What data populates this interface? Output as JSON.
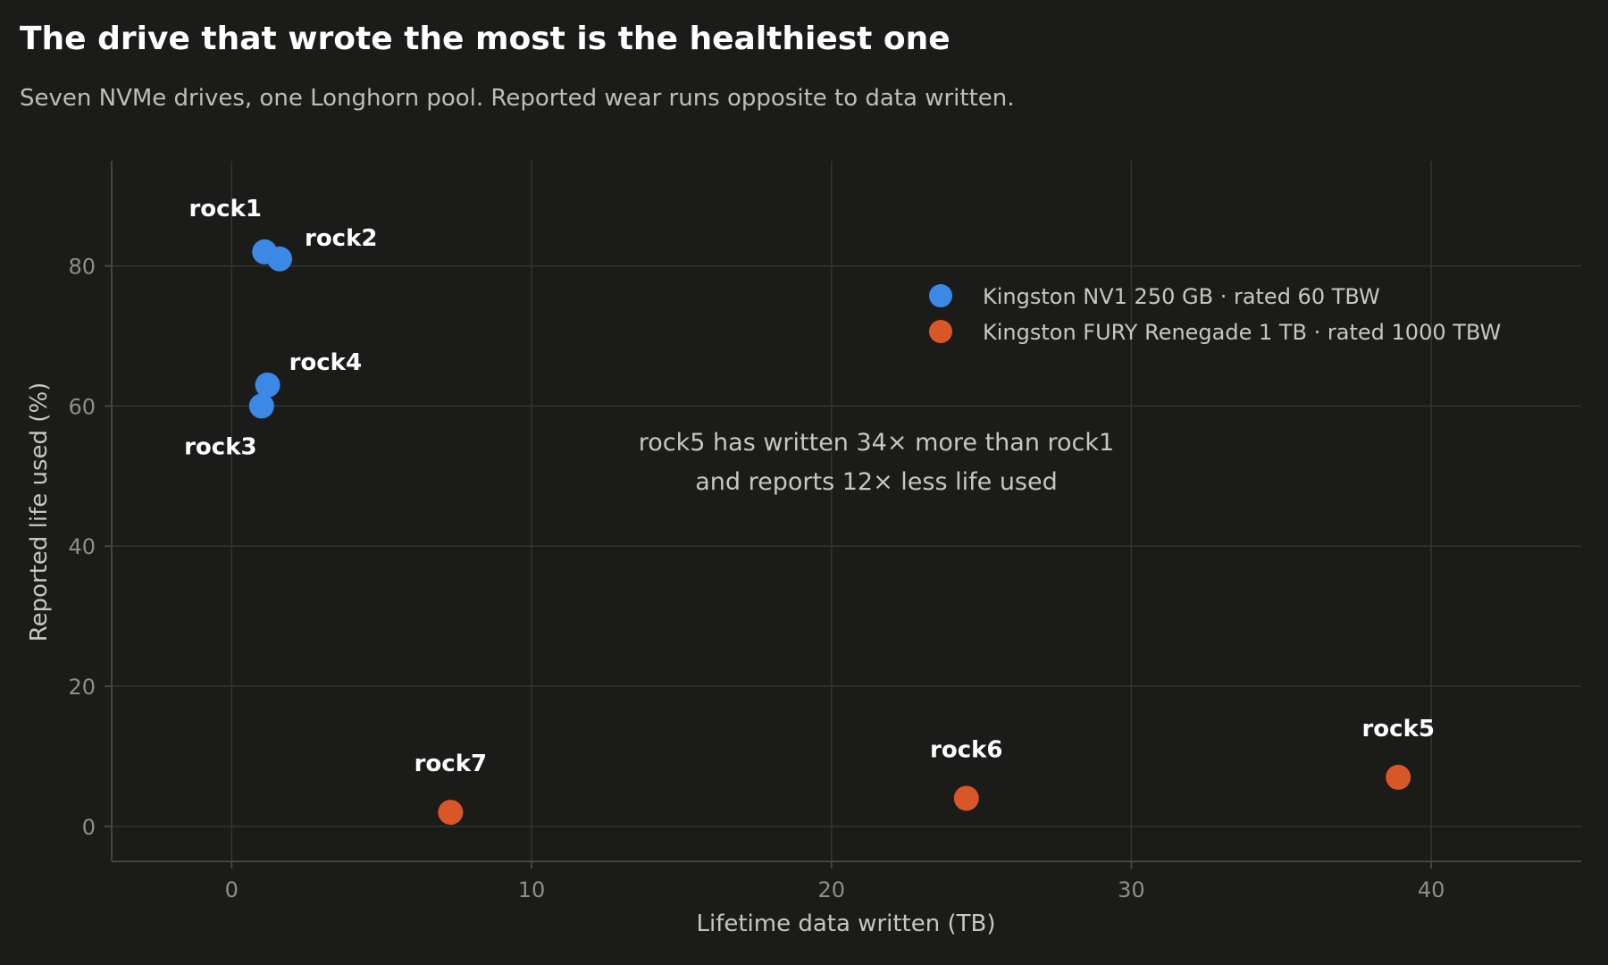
{
  "title": "The drive that wrote the most is the healthiest one",
  "subtitle": "Seven NVMe drives, one Longhorn pool. Reported wear runs opposite to data written.",
  "annotation": [
    "rock5 has written 34× more than rock1",
    "and reports 12× less life used"
  ],
  "colors": {
    "nv1": "#3b88e6",
    "fury": "#d95627",
    "background": "#1b1b1a"
  },
  "chart_data": {
    "type": "scatter",
    "title": "The drive that wrote the most is the healthiest one",
    "subtitle": "Seven NVMe drives, one Longhorn pool. Reported wear runs opposite to data written.",
    "xlabel": "Lifetime data written (TB)",
    "ylabel": "Reported life used (%)",
    "xlim": [
      -4,
      45
    ],
    "ylim": [
      -5,
      95
    ],
    "xticks": [
      0,
      10,
      20,
      30,
      40
    ],
    "yticks": [
      0,
      20,
      40,
      60,
      80
    ],
    "grid": true,
    "legend_position": "top-right",
    "series": [
      {
        "name": "Kingston NV1 250 GB  ·  rated 60 TBW",
        "color": "#3b88e6",
        "points": [
          {
            "label": "rock1",
            "x": 1.1,
            "y": 82
          },
          {
            "label": "rock2",
            "x": 1.6,
            "y": 81
          },
          {
            "label": "rock3",
            "x": 1.0,
            "y": 60
          },
          {
            "label": "rock4",
            "x": 1.2,
            "y": 63
          }
        ]
      },
      {
        "name": "Kingston FURY Renegade 1 TB  ·  rated 1000 TBW",
        "color": "#d95627",
        "points": [
          {
            "label": "rock5",
            "x": 38.9,
            "y": 7
          },
          {
            "label": "rock6",
            "x": 24.5,
            "y": 4
          },
          {
            "label": "rock7",
            "x": 7.3,
            "y": 2
          }
        ]
      }
    ]
  }
}
